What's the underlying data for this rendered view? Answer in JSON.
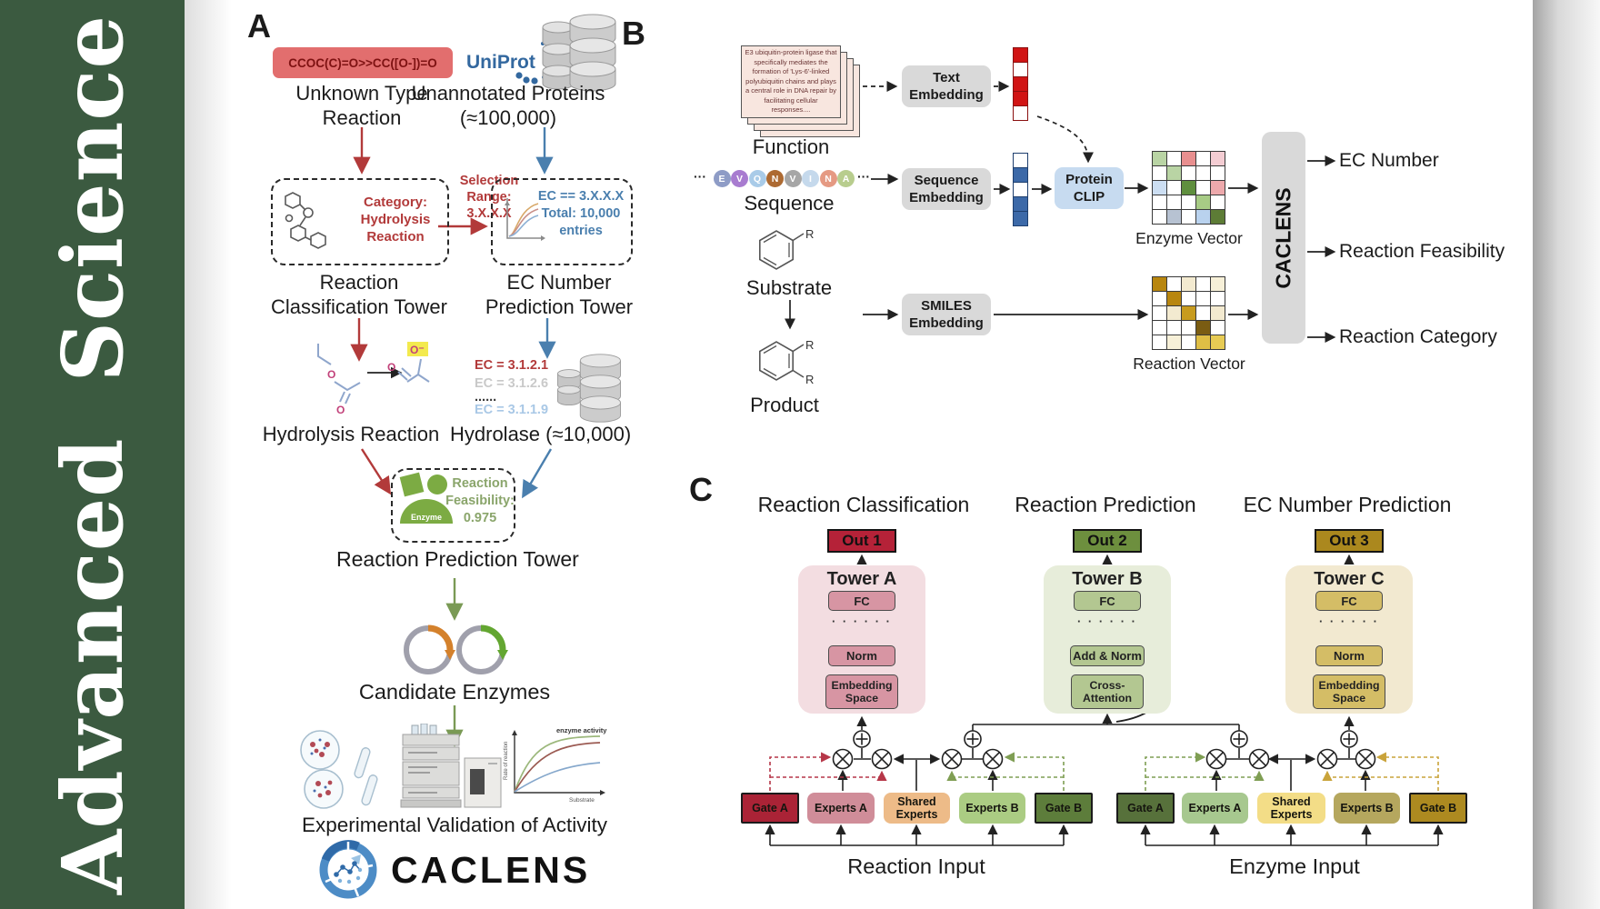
{
  "sidebar": {
    "title": "Advanced  Science",
    "bg": "#3b5a40"
  },
  "panelA": {
    "label": "A",
    "smiles_reaction": "CCOC(C)=O>>CC([O-])=O",
    "unknown_reaction_label": "Unknown Type Reaction",
    "uniprot_label": "UniProt",
    "unannotated_label": "Unannotated Proteins (≈100,000)",
    "category_text": "Category: Hydrolysis Reaction",
    "selection_text": "Selection Range: 3.X.X.X",
    "ec_filter_text": "EC == 3.X.X.X Total: 10,000 entries",
    "classification_tower_label": "Reaction Classification Tower",
    "ec_tower_label": "EC Number Prediction Tower",
    "ec_list": [
      {
        "text": "EC = 3.1.2.1",
        "color": "#b23a3a"
      },
      {
        "text": "EC = 3.1.2.6",
        "color": "#c9c9c9"
      },
      {
        "text": "......",
        "color": "#3a3a3a"
      },
      {
        "text": "EC = 3.1.1.9",
        "color": "#a9c8e6"
      }
    ],
    "hydrolysis_label": "Hydrolysis Reaction",
    "hydrolase_label": "Hydrolase (≈10,000)",
    "enzyme_badge": "Enzyme",
    "feasibility_text": "Reaction Feasibility: 0.975",
    "prediction_tower_label": "Reaction Prediction Tower",
    "candidate_label": "Candidate Enzymes",
    "validation_label": "Experimental Validation of Activity",
    "logo_text": "CACLENS",
    "activity_plot": {
      "annotation": "enzyme activity",
      "ylabel": "Rate of reaction",
      "xlabel": "Substrate"
    }
  },
  "panelB": {
    "label": "B",
    "function_card_text": "E3 ubiquitin-protein ligase that specifically mediates the formation of 'Lys-6'-linked polyubiquitin chains and plays a central role in DNA repair by facilitating cellular responses....",
    "function_label": "Function",
    "sequence_label": "Sequence",
    "ellipsis": "···",
    "residues": [
      {
        "letter": "E",
        "color": "#8e9cc6"
      },
      {
        "letter": "V",
        "color": "#a87cd0"
      },
      {
        "letter": "Q",
        "color": "#a9cbe8"
      },
      {
        "letter": "N",
        "color": "#ad6a32"
      },
      {
        "letter": "V",
        "color": "#a6a6a6"
      },
      {
        "letter": "I",
        "color": "#c5d9ec"
      },
      {
        "letter": "N",
        "color": "#e59a83"
      },
      {
        "letter": "A",
        "color": "#b8cd8e"
      }
    ],
    "substrate_label": "Substrate",
    "product_label": "Product",
    "r_label": "R",
    "text_embedding_label": "Text Embedding",
    "sequence_embedding_label": "Sequence Embedding",
    "smiles_embedding_label": "SMILES Embedding",
    "protein_clip_label": "Protein CLIP",
    "text_vector": [
      "#d11414",
      "#ffffff",
      "#d11414",
      "#d11414",
      "#ffffff"
    ],
    "sequence_vector": [
      "#ffffff",
      "#3c69a8",
      "#ffffff",
      "#3c69a8",
      "#3c69a8"
    ],
    "enzyme_vector_label": "Enzyme Vector",
    "reaction_vector_label": "Reaction Vector",
    "enzyme_vector_grid": [
      "#b9d4a4",
      "#ffffff",
      "#e88f8f",
      "#ffffff",
      "#f4cdd3",
      "#ffffff",
      "#b9d4a4",
      "#ffffff",
      "#ffffff",
      "#ffffff",
      "#ccdef2",
      "#ffffff",
      "#5f8f3e",
      "#ffffff",
      "#eda9ac",
      "#ffffff",
      "#ffffff",
      "#ffffff",
      "#a7cb85",
      "#ffffff",
      "#ffffff",
      "#b7c2d2",
      "#ffffff",
      "#b9d2ee",
      "#5d7c36"
    ],
    "reaction_vector_grid": [
      "#b8860f",
      "#ffffff",
      "#f3ead0",
      "#ffffff",
      "#f7f0d8",
      "#ffffff",
      "#b8860f",
      "#ffffff",
      "#ffffff",
      "#ffffff",
      "#ffffff",
      "#f3ead0",
      "#c79b1e",
      "#ffffff",
      "#f3ead0",
      "#ffffff",
      "#ffffff",
      "#ffffff",
      "#7a5c12",
      "#ffffff",
      "#ffffff",
      "#f7f0d8",
      "#ffffff",
      "#dfbe45",
      "#e7cb54"
    ],
    "caclens_label": "CACLENS",
    "outputs": [
      "EC Number",
      "Reaction Feasibility",
      "Reaction Category"
    ]
  },
  "panelC": {
    "label": "C",
    "headers": [
      "Reaction Classification",
      "Reaction Prediction",
      "EC Number Prediction"
    ],
    "towers": [
      {
        "out": "Out 1",
        "out_bg": "#b52238",
        "name": "Tower A",
        "bg": "#f3dde1",
        "block_bg": "#d795a3",
        "fc": "FC",
        "dots": "· · · · · ·",
        "mid": "Norm",
        "bottom": "Embedding Space"
      },
      {
        "out": "Out 2",
        "out_bg": "#6d8f3e",
        "name": "Tower B",
        "bg": "#e7edda",
        "block_bg": "#b3c791",
        "fc": "FC",
        "dots": "· · · · · ·",
        "mid": "Add & Norm",
        "bottom": "Cross-Attention"
      },
      {
        "out": "Out 3",
        "out_bg": "#ab881e",
        "name": "Tower C",
        "bg": "#f2e9d0",
        "block_bg": "#d4bd66",
        "fc": "FC",
        "dots": "· · · · · ·",
        "mid": "Norm",
        "bottom": "Embedding Space"
      }
    ],
    "moe_groups": [
      {
        "input_label": "Reaction Input",
        "boxes": [
          {
            "label": "Gate A",
            "bg": "#aa2336"
          },
          {
            "label": "Experts A",
            "bg": "#d08d99"
          },
          {
            "label": "Shared Experts",
            "bg": "#edbb88"
          },
          {
            "label": "Experts B",
            "bg": "#abcc83"
          },
          {
            "label": "Gate B",
            "bg": "#5d7d3b"
          }
        ]
      },
      {
        "input_label": "Enzyme Input",
        "boxes": [
          {
            "label": "Gate A",
            "bg": "#57713b"
          },
          {
            "label": "Experts A",
            "bg": "#a7c88f"
          },
          {
            "label": "Shared Experts",
            "bg": "#f3dd87"
          },
          {
            "label": "Experts B",
            "bg": "#b5a75e"
          },
          {
            "label": "Gate B",
            "bg": "#ad8a20"
          }
        ]
      }
    ]
  }
}
